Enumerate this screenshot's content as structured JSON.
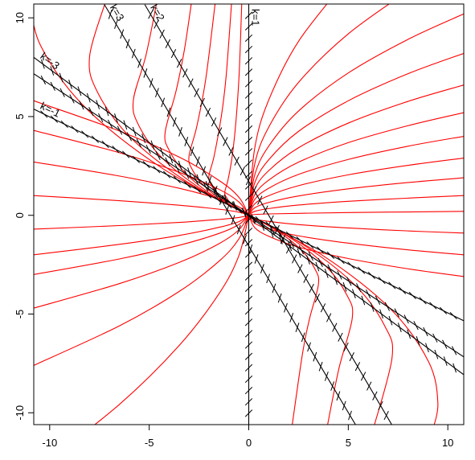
{
  "chart_data": {
    "type": "isocline",
    "xlim": [
      -10.8,
      10.8
    ],
    "ylim": [
      -10.6,
      10.7
    ],
    "xticks": [
      -10,
      -5,
      0,
      5,
      10
    ],
    "yticks": [
      -10,
      -5,
      0,
      5,
      10
    ],
    "curve_color": "#ff0000",
    "isocline_color": "#000000",
    "isoclines": [
      {
        "label": "k=1",
        "k": 1,
        "x": [
          0,
          0
        ],
        "y": [
          10.7,
          -10.6
        ]
      },
      {
        "label": "k=3",
        "k": 3,
        "x": [
          -7.25,
          5.38
        ],
        "y": [
          10.67,
          -10.63
        ]
      },
      {
        "label": "k=2",
        "k": 2,
        "x": [
          -5.22,
          7.2
        ],
        "y": [
          10.67,
          -10.63
        ]
      },
      {
        "label": "k=-3",
        "k": -3,
        "x": [
          -10.8,
          10.8
        ],
        "y": [
          8.0,
          -8.07
        ]
      },
      {
        "k": -2,
        "x": [
          -10.8,
          10.8
        ],
        "y": [
          7.17,
          -7.17
        ]
      },
      {
        "label": "k=-1",
        "k": -1,
        "x": [
          -10.8,
          10.8
        ],
        "y": [
          5.38,
          -5.34
        ]
      }
    ],
    "curves": [
      {
        "x": [
          0,
          -0.48,
          -0.9,
          -1.14,
          -1.2,
          -1.04,
          -0.83,
          -0.64,
          -0.48,
          -0.35
        ],
        "y": [
          0,
          0.26,
          0.6,
          0.94,
          1.2,
          1.8,
          3,
          4.8,
          7.2,
          10.8
        ]
      },
      {
        "x": [
          0,
          -0.8,
          -1.5,
          -1.9,
          -2,
          -1.74,
          -1.38,
          -1.14,
          -0.86
        ],
        "y": [
          0,
          0.44,
          1,
          1.56,
          2,
          3,
          5,
          7,
          10.8
        ]
      },
      {
        "x": [
          0,
          -1.2,
          -2.25,
          -2.85,
          -3,
          -2.61,
          -2.16,
          -1.68
        ],
        "y": [
          0,
          0.66,
          1.5,
          2.34,
          3,
          4.5,
          6.9,
          10.8
        ]
      },
      {
        "x": [
          0,
          -1.68,
          -3.15,
          -3.99,
          -4.2,
          -3.65,
          -3.23,
          -2.86
        ],
        "y": [
          0,
          0.92,
          2.1,
          3.28,
          4.2,
          6.3,
          8.4,
          10.9
        ]
      },
      {
        "x": [
          0,
          -2.32,
          -4.35,
          -5.51,
          -5.8,
          -5.16,
          -4.58
        ],
        "y": [
          0,
          1.28,
          2.9,
          4.52,
          5.8,
          8.12,
          11.0
        ]
      },
      {
        "x": [
          0,
          -3.2,
          -6,
          -7.6,
          -8,
          -7.2
        ],
        "y": [
          0,
          1.76,
          4,
          6.24,
          8,
          10.8
        ]
      },
      {
        "x": [
          0,
          -4.4,
          -8.25,
          -10.45,
          -11
        ],
        "y": [
          0,
          2.42,
          5.5,
          8.58,
          11
        ]
      },
      {
        "x": [
          0,
          1.4,
          2.63,
          3.33,
          3.5,
          3.05,
          2.7,
          2.15
        ],
        "y": [
          0,
          -0.77,
          -1.75,
          -2.73,
          -3.5,
          -5.25,
          -7,
          -10.85
        ]
      },
      {
        "x": [
          0,
          2.08,
          3.9,
          4.94,
          5.2,
          4.52,
          3.9
        ],
        "y": [
          0,
          -1.14,
          -2.6,
          -4.06,
          -5.2,
          -7.8,
          -10.92
        ]
      },
      {
        "x": [
          0,
          2.88,
          5.4,
          6.84,
          7.2,
          6.26
        ],
        "y": [
          0,
          -1.58,
          -3.6,
          -5.62,
          -7.2,
          -10.8
        ]
      },
      {
        "x": [
          0,
          3.8,
          7.13,
          9.03,
          9.5,
          9.2
        ],
        "y": [
          0,
          -2.09,
          -4.75,
          -7.41,
          -9.5,
          -11
        ]
      },
      {
        "x": [
          0,
          0.3,
          1,
          2.5,
          5
        ],
        "y": [
          0,
          3.4,
          5.83,
          8.81,
          12.02
        ]
      },
      {
        "x": [
          0,
          0.3,
          1,
          2.5,
          5,
          8
        ],
        "y": [
          0,
          2.6,
          4.46,
          6.73,
          9.19,
          11.36
        ]
      },
      {
        "x": [
          0,
          0.3,
          1,
          2.5,
          5,
          8,
          10.8
        ],
        "y": [
          0,
          2.04,
          3.5,
          5.28,
          7.21,
          8.91,
          10.2
        ]
      },
      {
        "x": [
          0,
          0.3,
          1,
          2.5,
          5,
          8,
          10.8
        ],
        "y": [
          0,
          1.64,
          2.81,
          4.25,
          5.8,
          7.17,
          8.2
        ]
      },
      {
        "x": [
          0,
          0.3,
          1,
          2.5,
          5,
          8,
          10.8
        ],
        "y": [
          0,
          1.32,
          2.26,
          3.42,
          4.67,
          5.77,
          6.6
        ]
      },
      {
        "x": [
          0,
          0.3,
          1,
          2.5,
          5,
          8,
          10.8
        ],
        "y": [
          0,
          1.04,
          1.78,
          2.69,
          3.68,
          4.54,
          5.2
        ]
      },
      {
        "x": [
          0,
          0.3,
          1,
          2.5,
          5,
          8,
          10.8
        ],
        "y": [
          0,
          0.8,
          1.37,
          2.07,
          2.83,
          3.5,
          4
        ]
      },
      {
        "x": [
          0,
          0.3,
          1,
          2.5,
          5,
          8,
          10.8
        ],
        "y": [
          0,
          0.58,
          0.99,
          1.5,
          2.05,
          2.53,
          2.9
        ]
      },
      {
        "x": [
          0,
          0.3,
          1,
          2.5,
          5,
          8,
          10.8
        ],
        "y": [
          0,
          0.38,
          0.65,
          0.98,
          1.34,
          1.66,
          1.9
        ]
      },
      {
        "x": [
          0,
          0.3,
          1,
          2.5,
          5,
          8,
          10.8
        ],
        "y": [
          0,
          0.2,
          0.34,
          0.52,
          0.71,
          0.87,
          1
        ]
      },
      {
        "x": [
          0,
          0.3,
          1,
          2.5,
          5,
          8,
          10.8
        ],
        "y": [
          0,
          0.04,
          0.07,
          0.1,
          0.14,
          0.17,
          0.2
        ]
      },
      {
        "x": [
          0,
          0.3,
          1,
          2.5,
          5,
          8,
          10.8
        ],
        "y": [
          0,
          -0.18,
          -0.31,
          -0.47,
          -0.64,
          -0.79,
          -0.9
        ]
      },
      {
        "x": [
          0,
          0.3,
          1,
          2.5,
          5,
          8,
          10.8
        ],
        "y": [
          0,
          -0.4,
          -0.69,
          -1.04,
          -1.41,
          -1.75,
          -2
        ]
      },
      {
        "x": [
          0,
          0.3,
          1,
          2.5,
          5,
          8,
          10.8
        ],
        "y": [
          0,
          -0.62,
          -1.06,
          -1.61,
          -2.19,
          -2.71,
          -3.1
        ]
      },
      {
        "x": [
          0,
          -0.5,
          -1.5,
          -3.5,
          -6.5,
          -10.8
        ],
        "y": [
          0,
          0.92,
          1.77,
          2.95,
          4.27,
          5.8
        ]
      },
      {
        "x": [
          0,
          -0.5,
          -1.5,
          -3.5,
          -6.5,
          -10.8
        ],
        "y": [
          0,
          0.68,
          1.32,
          2.18,
          3.17,
          4.3
        ]
      },
      {
        "x": [
          0,
          -0.5,
          -1.5,
          -3.5,
          -6.5,
          -10.8
        ],
        "y": [
          0,
          0.43,
          0.83,
          1.37,
          1.99,
          2.7
        ]
      },
      {
        "x": [
          0,
          -0.5,
          -1.5,
          -3.5,
          -6.5,
          -10.8
        ],
        "y": [
          0,
          0.16,
          0.31,
          0.51,
          0.74,
          1
        ]
      },
      {
        "x": [
          0,
          -0.5,
          -1.5,
          -3.5,
          -6.5,
          -10.8
        ],
        "y": [
          0,
          -0.11,
          -0.21,
          -0.36,
          -0.52,
          -0.7
        ]
      },
      {
        "x": [
          0,
          -0.5,
          -1.5,
          -3.5,
          -6.5,
          -10.8
        ],
        "y": [
          0,
          -0.32,
          -0.61,
          -1.02,
          -1.47,
          -2
        ]
      },
      {
        "x": [
          0,
          -0.5,
          -1.5,
          -3.5,
          -6.5,
          -10.8
        ],
        "y": [
          0,
          -0.47,
          -0.92,
          -1.52,
          -2.21,
          -3
        ]
      },
      {
        "x": [
          0,
          -0.5,
          -1.5,
          -3.5,
          -6.5,
          -10.8
        ],
        "y": [
          0,
          -0.74,
          -1.44,
          -2.39,
          -3.46,
          -4.7
        ]
      },
      {
        "x": [
          0,
          -0.5,
          -1.5,
          -3.5,
          -6.5,
          -10.8
        ],
        "y": [
          0,
          -1.2,
          -2.33,
          -3.86,
          -5.6,
          -7.6
        ]
      },
      {
        "x": [
          0,
          -0.5,
          -1.5,
          -3.5,
          -6.5,
          -10.8
        ],
        "y": [
          0,
          -2.05,
          -3.98,
          -6.6,
          -9.58,
          -13
        ]
      }
    ]
  }
}
